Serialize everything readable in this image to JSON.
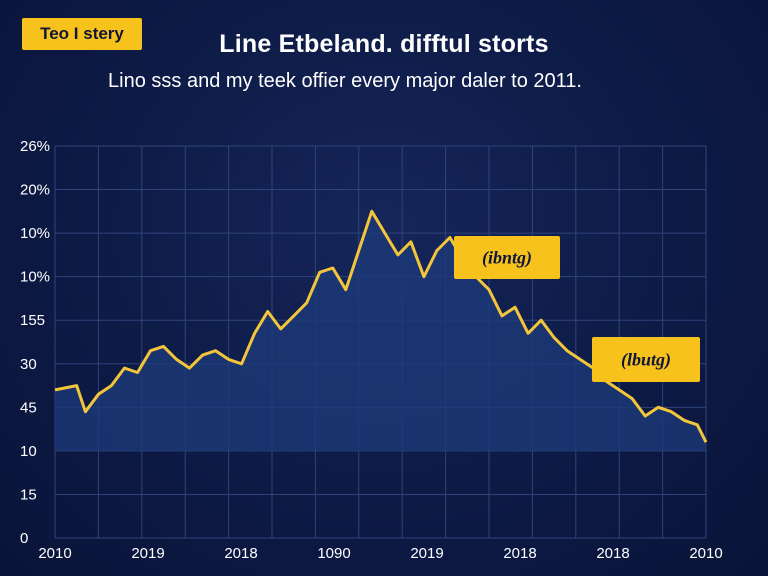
{
  "badge": "Teo I stery",
  "title": "Line Etbeland. difftul storts",
  "subtitle": "Lino sss and my teek offier every major daler to 2011.",
  "colors": {
    "background": "#0d1a45",
    "line": "#f2c53a",
    "area": "#1c3a78",
    "annotation_fill": "#f7c21b",
    "grid": "#2f437a"
  },
  "chart_data": {
    "type": "area",
    "y_tick_labels": [
      "0",
      "15",
      "10",
      "45",
      "30",
      "155",
      "10%",
      "10%",
      "20%",
      "26%"
    ],
    "x_tick_labels": [
      "2010",
      "2019",
      "2018",
      "1090",
      "2019",
      "2018",
      "2018",
      "2010"
    ],
    "grid": true,
    "annotations": [
      "(ibntg)",
      "(lbutg)"
    ],
    "x": [
      0,
      0.5,
      0.7,
      1,
      1.3,
      1.6,
      1.9,
      2.2,
      2.5,
      2.8,
      3.1,
      3.4,
      3.7,
      4,
      4.3,
      4.6,
      4.9,
      5.2,
      5.5,
      5.8,
      6.1,
      6.4,
      6.7,
      7,
      7.3,
      7.6,
      7.9,
      8.2,
      8.5,
      8.8,
      9.1,
      9.4,
      9.7,
      10,
      10.3,
      10.6,
      10.9,
      11.2,
      11.5,
      11.8,
      12.1,
      12.4,
      12.7,
      13,
      13.3,
      13.6,
      13.9,
      14.2,
      14.5,
      14.8,
      15
    ],
    "values": [
      3.4,
      3.5,
      2.9,
      3.3,
      3.5,
      3.9,
      3.8,
      4.3,
      4.4,
      4.1,
      3.9,
      4.2,
      4.3,
      4.1,
      4.0,
      4.7,
      5.2,
      4.8,
      5.1,
      5.4,
      6.1,
      6.2,
      5.7,
      6.6,
      7.5,
      7.0,
      6.5,
      6.8,
      6.0,
      6.6,
      6.9,
      6.4,
      6.0,
      5.7,
      5.1,
      5.3,
      4.7,
      5.0,
      4.6,
      4.3,
      4.1,
      3.9,
      3.6,
      3.4,
      3.2,
      2.8,
      3.0,
      2.9,
      2.7,
      2.6,
      2.2
    ],
    "ylim": [
      0,
      9
    ],
    "xlim": [
      0,
      15
    ]
  }
}
